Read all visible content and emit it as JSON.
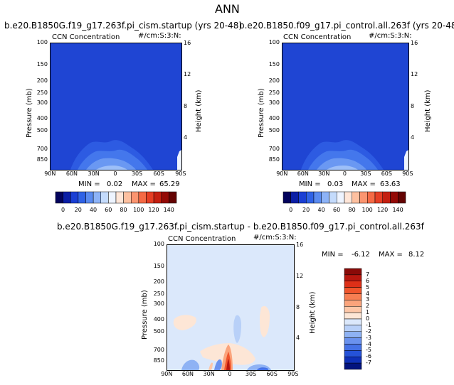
{
  "figure": {
    "title": "ANN"
  },
  "panels": [
    {
      "id": "left",
      "subtitle": "b.e20.B1850G.f19_g17.263f.pi_cism.startup (yrs 20-48)",
      "variable": "CCN Concentration",
      "units": "#/cm:S:3:N:",
      "min_label": "MIN =",
      "min_value": "0.02",
      "max_label": "MAX =",
      "max_value": "65.29"
    },
    {
      "id": "right",
      "subtitle": "b.e20.B1850.f09_g17.pi_control.all.263f (yrs 20-48)",
      "variable": "CCN Concentration",
      "units": "#/cm:S:3:N:",
      "min_label": "MIN =",
      "min_value": "0.03",
      "max_label": "MAX =",
      "max_value": "63.63"
    },
    {
      "id": "diff",
      "subtitle": "b.e20.B1850G.f19_g17.263f.pi_cism.startup - b.e20.B1850.f09_g17.pi_control.all.263f",
      "variable": "CCN Concentration",
      "units": "#/cm:S:3:N:",
      "min_label": "MIN =",
      "min_value": "-6.12",
      "max_label": "MAX =",
      "max_value": "8.12"
    }
  ],
  "axes": {
    "y_left_label": "Pressure (mb)",
    "y_right_label": "Height (km)",
    "pressure_ticks": [
      "100",
      "150",
      "200",
      "250",
      "300",
      "400",
      "500",
      "700",
      "850"
    ],
    "height_ticks": [
      "16",
      "12",
      "8",
      "4"
    ],
    "lat_ticks": [
      "90N",
      "60N",
      "30N",
      "0",
      "30S",
      "60S",
      "90S"
    ]
  },
  "colorbars": {
    "absolute": {
      "labels": [
        "0",
        "20",
        "40",
        "60",
        "80",
        "100",
        "120",
        "140"
      ],
      "colors": [
        "#03035c",
        "#0a1ea6",
        "#1a3fd4",
        "#2f62e6",
        "#5a8bf0",
        "#8db3f7",
        "#c4dbfc",
        "#eef4ff",
        "#ffe6d8",
        "#fdc0a0",
        "#fb9570",
        "#f56a45",
        "#e53e24",
        "#c41f10",
        "#940a06",
        "#640302"
      ]
    },
    "difference": {
      "labels": [
        "7",
        "6",
        "5",
        "4",
        "3",
        "2",
        "1",
        "0",
        "-1",
        "-2",
        "-3",
        "-4",
        "-5",
        "-6",
        "-7"
      ],
      "colors": [
        "#8a0a08",
        "#b8170f",
        "#dd3018",
        "#f0552c",
        "#f77e52",
        "#fba47c",
        "#fdc7a8",
        "#fde6d6",
        "#dbe8fb",
        "#b8d0f8",
        "#8eb2f4",
        "#6a92ee",
        "#4572e6",
        "#2552d8",
        "#0f30b8",
        "#03137e"
      ]
    }
  },
  "chart_data": [
    {
      "type": "heatmap",
      "title": "CCN Concentration",
      "subtitle": "b.e20.B1850G.f19_g17.263f.pi_cism.startup (yrs 20-48)",
      "xlabel": "",
      "ylabel": "Pressure (mb)",
      "y2label": "Height (km)",
      "xlim": [
        90,
        -90
      ],
      "ylim": [
        1000,
        100
      ],
      "min": 0.02,
      "max": 65.29,
      "contour_levels": [
        0,
        10,
        20,
        30,
        40,
        50,
        60,
        70,
        80,
        90,
        100,
        110,
        120,
        130,
        140
      ],
      "grid": false
    },
    {
      "type": "heatmap",
      "title": "CCN Concentration",
      "subtitle": "b.e20.B1850.f09_g17.pi_control.all.263f (yrs 20-48)",
      "xlabel": "",
      "ylabel": "Pressure (mb)",
      "y2label": "Height (km)",
      "xlim": [
        90,
        -90
      ],
      "ylim": [
        1000,
        100
      ],
      "min": 0.03,
      "max": 63.63,
      "contour_levels": [
        0,
        10,
        20,
        30,
        40,
        50,
        60,
        70,
        80,
        90,
        100,
        110,
        120,
        130,
        140
      ],
      "grid": false
    },
    {
      "type": "heatmap",
      "title": "CCN Concentration",
      "subtitle": "b.e20.B1850G.f19_g17.263f.pi_cism.startup - b.e20.B1850.f09_g17.pi_control.all.263f",
      "xlabel": "",
      "ylabel": "Pressure (mb)",
      "y2label": "Height (km)",
      "xlim": [
        90,
        -90
      ],
      "ylim": [
        1000,
        100
      ],
      "min": -6.12,
      "max": 8.12,
      "contour_levels": [
        -7,
        -6,
        -5,
        -4,
        -3,
        -2,
        -1,
        0,
        1,
        2,
        3,
        4,
        5,
        6,
        7
      ],
      "grid": false
    }
  ]
}
